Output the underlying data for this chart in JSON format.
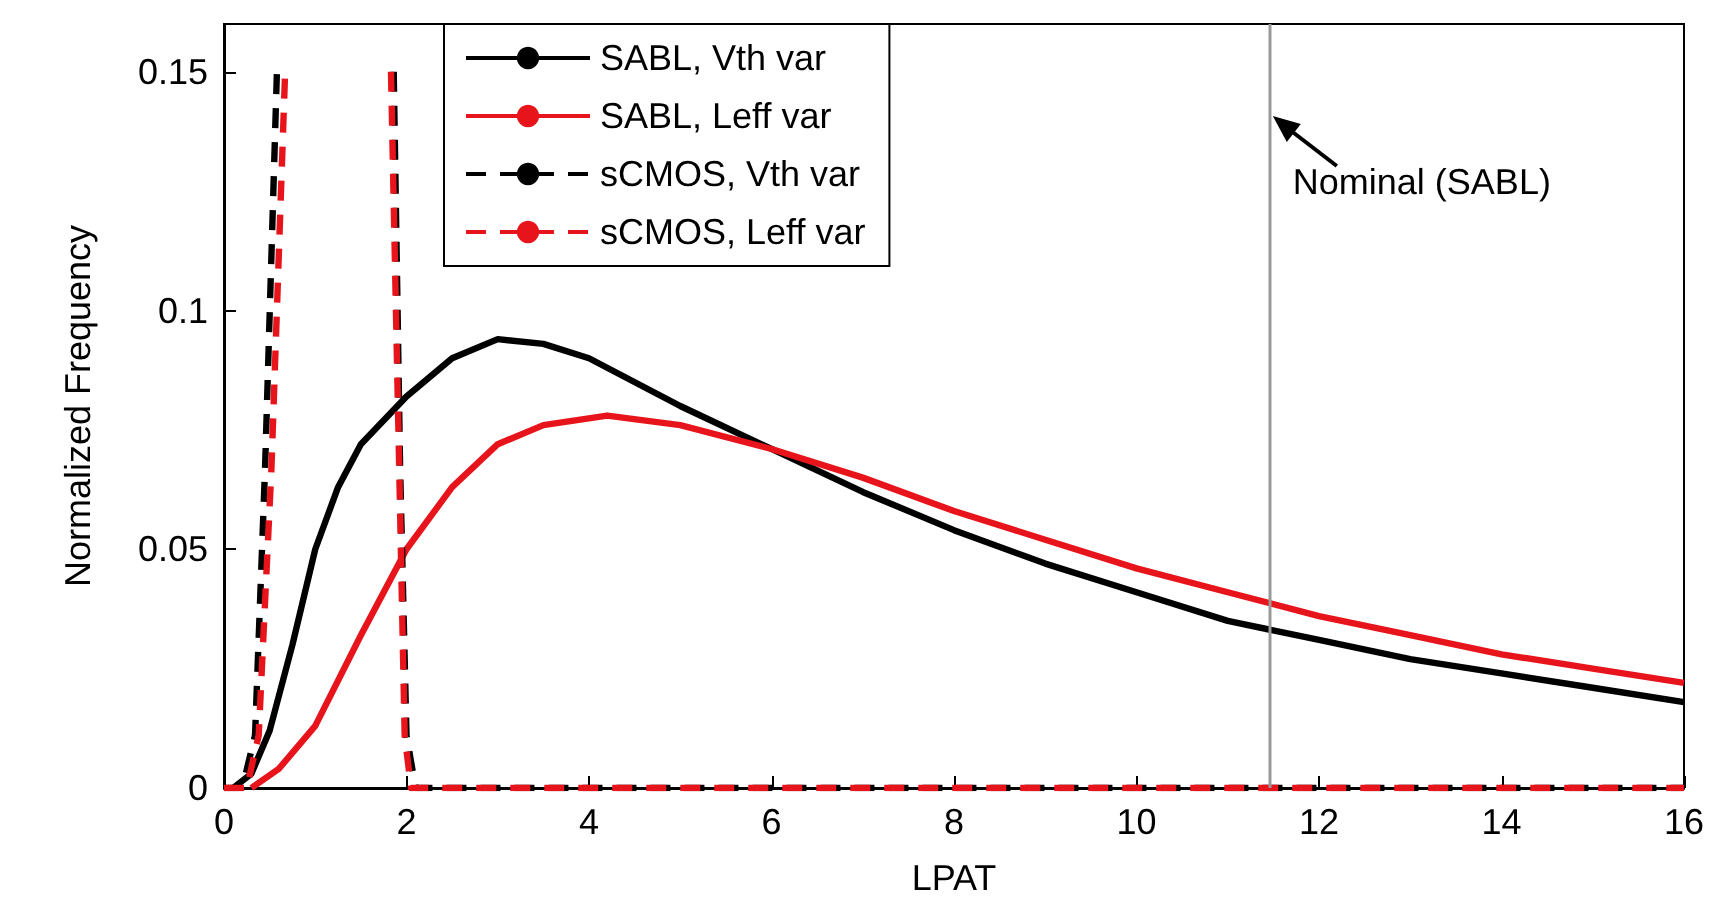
{
  "chart_data": {
    "type": "line",
    "xlabel": "LPAT",
    "ylabel": "Normalized Frequency",
    "xlim": [
      0,
      16
    ],
    "xticks": [
      0,
      2,
      4,
      6,
      8,
      10,
      12,
      14,
      16
    ],
    "ylim": [
      0,
      0.16
    ],
    "yticks": [
      0,
      0.05,
      0.1,
      0.15
    ],
    "grid": false,
    "legend": "top",
    "marker": "none",
    "series": [
      {
        "name": "SABL, Vth var",
        "color": "#000000",
        "line_style": "solid",
        "x": [
          0.1,
          0.3,
          0.5,
          0.75,
          1,
          1.25,
          1.5,
          2,
          2.5,
          3,
          3.5,
          4,
          5,
          6,
          7,
          8,
          9,
          10,
          11,
          12,
          13,
          14,
          15,
          16
        ],
        "values": [
          0,
          0.003,
          0.012,
          0.03,
          0.05,
          0.063,
          0.072,
          0.082,
          0.09,
          0.094,
          0.093,
          0.09,
          0.08,
          0.071,
          0.062,
          0.054,
          0.047,
          0.041,
          0.035,
          0.031,
          0.027,
          0.024,
          0.021,
          0.018
        ]
      },
      {
        "name": "SABL, Leff var",
        "color": "#e8141c",
        "line_style": "solid",
        "x": [
          0.3,
          0.6,
          1,
          1.5,
          2,
          2.5,
          3,
          3.5,
          4.2,
          5,
          6,
          7,
          8,
          9,
          10,
          11,
          12,
          13,
          14,
          15,
          16
        ],
        "values": [
          0,
          0.004,
          0.013,
          0.032,
          0.05,
          0.063,
          0.072,
          0.076,
          0.078,
          0.076,
          0.071,
          0.065,
          0.058,
          0.052,
          0.046,
          0.041,
          0.036,
          0.032,
          0.028,
          0.025,
          0.022
        ]
      },
      {
        "name": "sCMOS, Vth var",
        "color": "#000000",
        "line_style": "dashed",
        "x": [
          0,
          0.2,
          0.34,
          0.45,
          0.58,
          1.2,
          1.86,
          1.93,
          2,
          2.1,
          2.2,
          16
        ],
        "values": [
          0,
          0,
          0.011,
          0.067,
          0.15,
          null,
          0.15,
          0.067,
          0.011,
          0,
          0,
          0
        ]
      },
      {
        "name": "sCMOS, Leff var",
        "color": "#e8141c",
        "line_style": "dashed",
        "x": [
          0,
          0.25,
          0.38,
          0.52,
          0.67,
          1.2,
          1.83,
          1.92,
          1.98,
          2.05,
          2.2,
          16
        ],
        "values": [
          0,
          0,
          0.011,
          0.067,
          0.15,
          null,
          0.15,
          0.067,
          0.011,
          0,
          0,
          0
        ]
      }
    ],
    "ref_lines": [
      {
        "axis": "x",
        "value": 11.45,
        "label": "Nominal (SABL)",
        "color": "#999999"
      }
    ]
  }
}
